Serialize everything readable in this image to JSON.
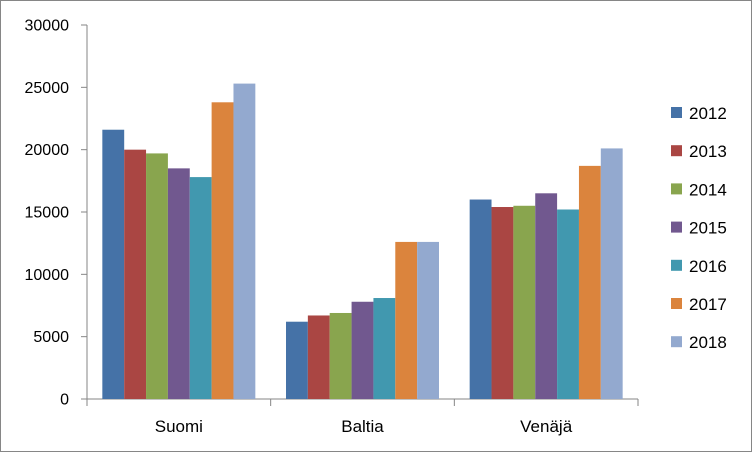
{
  "chart_data": {
    "type": "bar",
    "title": "",
    "xlabel": "",
    "ylabel": "",
    "categories": [
      "Suomi",
      "Baltia",
      "Venäjä"
    ],
    "ylim": [
      0,
      30000
    ],
    "yticks": [
      "0",
      "5000",
      "10000",
      "15000",
      "20000",
      "25000",
      "30000"
    ],
    "grid": false,
    "legend_position": "right",
    "series": [
      {
        "name": "2012",
        "color": "#4572A7",
        "values": [
          21600,
          6200,
          16000
        ]
      },
      {
        "name": "2013",
        "color": "#AA4643",
        "values": [
          20000,
          6700,
          15400
        ]
      },
      {
        "name": "2014",
        "color": "#89A54E",
        "values": [
          19700,
          6900,
          15500
        ]
      },
      {
        "name": "2015",
        "color": "#71588F",
        "values": [
          18500,
          7800,
          16500
        ]
      },
      {
        "name": "2016",
        "color": "#4198AF",
        "values": [
          17800,
          8100,
          15200
        ]
      },
      {
        "name": "2017",
        "color": "#DB843D",
        "values": [
          23800,
          12600,
          18700
        ]
      },
      {
        "name": "2018",
        "color": "#93A9CF",
        "values": [
          25300,
          12600,
          20100
        ]
      }
    ]
  }
}
